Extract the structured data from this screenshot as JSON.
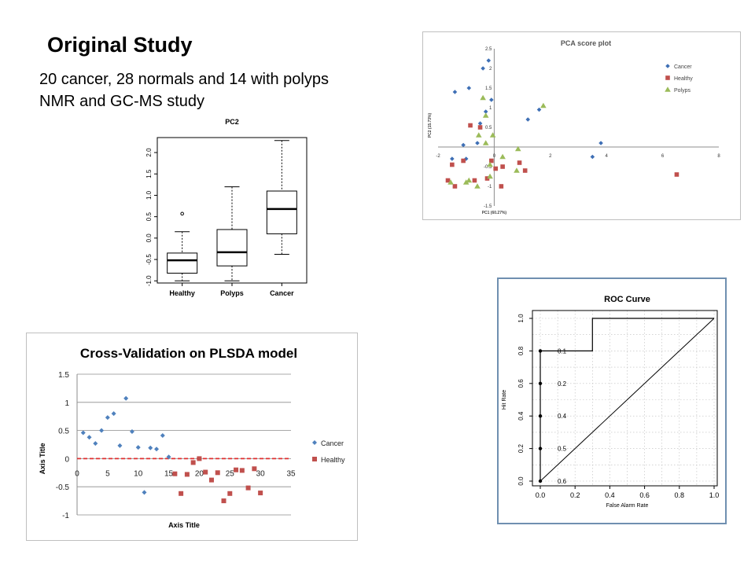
{
  "slide": {
    "title": "Original Study",
    "line1": "20 cancer, 28 normals and 14 with polyps",
    "line2": "NMR and GC-MS study"
  },
  "chart_data": [
    {
      "id": "boxplot",
      "type": "box",
      "title": "PC2",
      "categories": [
        "Healthy",
        "Polyps",
        "Cancer"
      ],
      "ylim": [
        -1.05,
        2.35
      ],
      "yticks": [
        "-1.0",
        "-0.5",
        "0.0",
        "0.5",
        "1.0",
        "1.5",
        "2.0"
      ],
      "yticks_values": [
        -1.0,
        -0.5,
        0.0,
        0.5,
        1.0,
        1.5,
        2.0
      ],
      "boxes": [
        {
          "name": "Healthy",
          "min": -1.0,
          "q1": -0.82,
          "median": -0.52,
          "q3": -0.35,
          "max": 0.15,
          "outliers": [
            0.57
          ]
        },
        {
          "name": "Polyps",
          "min": -1.0,
          "q1": -0.65,
          "median": -0.33,
          "q3": 0.2,
          "max": 1.2,
          "outliers": []
        },
        {
          "name": "Cancer",
          "min": -0.38,
          "q1": 0.1,
          "median": 0.68,
          "q3": 1.1,
          "max": 2.28,
          "outliers": []
        }
      ]
    },
    {
      "id": "pca",
      "type": "scatter",
      "title": "PCA score plot",
      "xlabel": "PC1 (60.27%)",
      "ylabel": "PC2 (15.73%)",
      "xlim": [
        -2,
        8
      ],
      "ylim": [
        -1.5,
        2.5
      ],
      "xticks": [
        -2,
        0,
        2,
        4,
        6,
        8
      ],
      "xtick_labels": [
        "-2",
        "0",
        "2",
        "4",
        "6",
        "8"
      ],
      "yticks": [
        -1.5,
        -1,
        -0.5,
        0.5,
        1,
        1.5,
        2,
        2.5
      ],
      "ytick_labels": [
        "-1.5",
        "-1",
        "-0.5",
        "0.5",
        "1",
        "1.5",
        "2",
        "2.5"
      ],
      "legend_position": "top-right",
      "series": [
        {
          "name": "Cancer",
          "color": "#3e6fb5",
          "marker": "diamond",
          "points": [
            [
              -0.2,
              2.2
            ],
            [
              -0.4,
              2.0
            ],
            [
              -1.4,
              1.4
            ],
            [
              -0.9,
              1.5
            ],
            [
              -0.3,
              0.9
            ],
            [
              -0.1,
              1.2
            ],
            [
              -0.5,
              0.6
            ],
            [
              -0.6,
              0.1
            ],
            [
              -1.1,
              0.05
            ],
            [
              1.2,
              0.7
            ],
            [
              1.6,
              0.95
            ],
            [
              3.8,
              0.1
            ],
            [
              3.5,
              -0.25
            ],
            [
              -1.5,
              -0.3
            ],
            [
              -1.0,
              -0.3
            ]
          ]
        },
        {
          "name": "Healthy",
          "color": "#c0504d",
          "marker": "square",
          "points": [
            [
              -0.85,
              0.55
            ],
            [
              -0.5,
              0.5
            ],
            [
              -1.5,
              -0.45
            ],
            [
              -1.1,
              -0.35
            ],
            [
              -0.1,
              -0.35
            ],
            [
              0.3,
              -0.5
            ],
            [
              0.9,
              -0.4
            ],
            [
              1.1,
              -0.6
            ],
            [
              -0.25,
              -0.8
            ],
            [
              -0.7,
              -0.85
            ],
            [
              -1.65,
              -0.85
            ],
            [
              -1.4,
              -1.0
            ],
            [
              0.25,
              -1.0
            ],
            [
              0.05,
              -0.55
            ],
            [
              6.5,
              -0.7
            ]
          ]
        },
        {
          "name": "Polyps",
          "color": "#9bbb59",
          "marker": "triangle",
          "points": [
            [
              -0.4,
              1.25
            ],
            [
              1.75,
              1.05
            ],
            [
              -0.3,
              0.8
            ],
            [
              -0.55,
              0.3
            ],
            [
              -0.05,
              0.3
            ],
            [
              -0.3,
              0.1
            ],
            [
              -0.15,
              -0.45
            ],
            [
              0.85,
              -0.05
            ],
            [
              -0.15,
              -0.75
            ],
            [
              0.8,
              -0.6
            ],
            [
              -0.9,
              -0.85
            ],
            [
              -1.0,
              -0.9
            ],
            [
              -1.55,
              -0.9
            ],
            [
              -0.6,
              -1.0
            ],
            [
              0.3,
              -0.25
            ]
          ]
        }
      ]
    },
    {
      "id": "cv",
      "type": "scatter",
      "title": "Cross-Validation on PLSDA model",
      "xlabel": "Axis Title",
      "ylabel": "Axis Title",
      "xlim": [
        0,
        35
      ],
      "ylim": [
        -1,
        1.5
      ],
      "xticks": [
        0,
        5,
        10,
        15,
        20,
        25,
        30,
        35
      ],
      "xtick_labels": [
        "0",
        "5",
        "10",
        "15",
        "20",
        "25",
        "30",
        "35"
      ],
      "yticks": [
        1.5,
        1,
        0.5,
        0,
        -0.5,
        -1
      ],
      "ytick_labels": [
        "1.5",
        "1",
        "0.5",
        "0",
        "-0.5",
        "-1"
      ],
      "legend_position": "right",
      "threshold": 0,
      "series": [
        {
          "name": "Cancer",
          "color": "#4f81bd",
          "marker": "diamond",
          "points": [
            [
              1,
              0.46
            ],
            [
              2,
              0.38
            ],
            [
              3,
              0.27
            ],
            [
              4,
              0.5
            ],
            [
              5,
              0.73
            ],
            [
              6,
              0.8
            ],
            [
              7,
              0.23
            ],
            [
              8,
              1.07
            ],
            [
              9,
              0.48
            ],
            [
              10,
              0.2
            ],
            [
              11,
              -0.6
            ],
            [
              12,
              0.19
            ],
            [
              13,
              0.17
            ],
            [
              14,
              0.41
            ],
            [
              15,
              0.03
            ]
          ]
        },
        {
          "name": "Healthy",
          "color": "#c0504d",
          "marker": "square",
          "points": [
            [
              16,
              -0.27
            ],
            [
              17,
              -0.62
            ],
            [
              18,
              -0.28
            ],
            [
              19,
              -0.07
            ],
            [
              20,
              0.0
            ],
            [
              21,
              -0.24
            ],
            [
              22,
              -0.38
            ],
            [
              23,
              -0.25
            ],
            [
              24,
              -0.75
            ],
            [
              25,
              -0.62
            ],
            [
              26,
              -0.2
            ],
            [
              27,
              -0.21
            ],
            [
              28,
              -0.52
            ],
            [
              29,
              -0.18
            ],
            [
              30,
              -0.61
            ]
          ]
        }
      ]
    },
    {
      "id": "roc",
      "type": "line",
      "title": "ROC Curve",
      "xlabel": "False Alarm Rate",
      "ylabel": "Hit Rate",
      "xlim": [
        0,
        1
      ],
      "ylim": [
        0,
        1
      ],
      "xticks": [
        0,
        0.2,
        0.4,
        0.6,
        0.8,
        1.0
      ],
      "xtick_labels": [
        "0.0",
        "0.2",
        "0.4",
        "0.6",
        "0.8",
        "1.0"
      ],
      "yticks": [
        0,
        0.2,
        0.4,
        0.6,
        0.8,
        1.0
      ],
      "ytick_labels": [
        "0.0",
        "0.2",
        "0.4",
        "0.6",
        "0.8",
        "1.0"
      ],
      "grid": true,
      "curve": [
        [
          0,
          0
        ],
        [
          0,
          0.8
        ],
        [
          0.3,
          0.8
        ],
        [
          0.3,
          1.0
        ],
        [
          1.0,
          1.0
        ]
      ],
      "diagonal": [
        [
          0,
          0
        ],
        [
          1,
          1
        ]
      ],
      "thresholds": [
        {
          "x": 0,
          "y": 0.8,
          "label": "0.1"
        },
        {
          "x": 0,
          "y": 0.6,
          "label": "0.2"
        },
        {
          "x": 0,
          "y": 0.4,
          "label": "0.4"
        },
        {
          "x": 0,
          "y": 0.2,
          "label": "0.5"
        },
        {
          "x": 0,
          "y": 0.0,
          "label": "0.6"
        }
      ]
    }
  ]
}
